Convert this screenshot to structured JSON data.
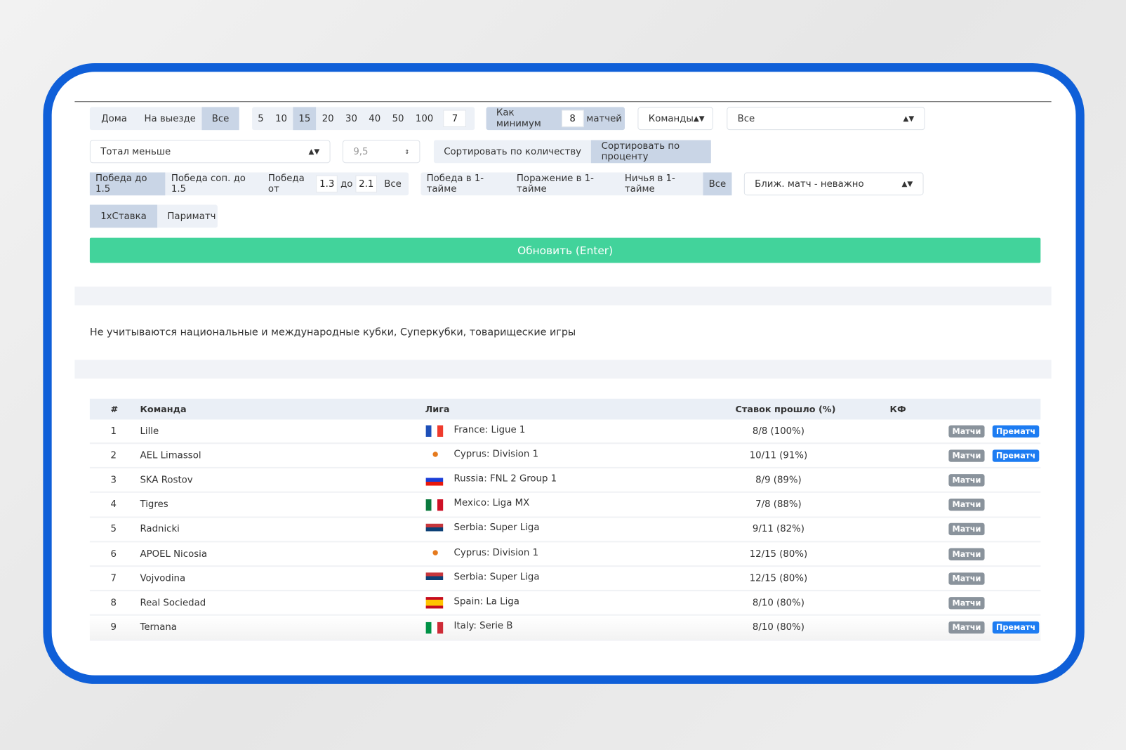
{
  "filters": {
    "venue": [
      "Дома",
      "На выезде",
      "Все"
    ],
    "venue_active": 2,
    "counts": [
      "5",
      "10",
      "15",
      "20",
      "30",
      "40",
      "50",
      "100"
    ],
    "counts_active": 2,
    "count_custom": "7",
    "min_prefix": "Как минимум",
    "min_value": "8",
    "min_suffix": "матчей",
    "teams_select": "Команды",
    "teams_value": "Все",
    "total_select": "Тотал меньше",
    "total_value": "9,5",
    "sort": [
      "Сортировать по количеству",
      "Сортировать по проценту"
    ],
    "sort_active": 1,
    "win": {
      "a": "Победа до 1.5",
      "b": "Победа соп. до 1.5",
      "c": "Победа от",
      "from": "1.3",
      "to_label": "до",
      "to": "2.1",
      "all": "Все"
    },
    "half": [
      "Победа в 1-тайме",
      "Поражение в 1-тайме",
      "Ничья в 1-тайме",
      "Все"
    ],
    "half_active": 3,
    "next_match": "Ближ. матч - неважно",
    "bookmakers": [
      "1хСтавка",
      "Париматч"
    ],
    "bookmaker_active": 0,
    "update": "Обновить (Enter)"
  },
  "note": "Не учитываются национальные и международные кубки, Суперкубки, товарищеские игры",
  "table": {
    "headers": [
      "#",
      "Команда",
      "Лига",
      "Ставок прошло (%)",
      "КФ"
    ],
    "matches_label": "Матчи",
    "prematch_label": "Прематч",
    "rows": [
      {
        "n": "1",
        "team": "Lille",
        "flag": "france",
        "league": "France: Ligue 1",
        "result": "8/8 (100%)",
        "prematch": true
      },
      {
        "n": "2",
        "team": "AEL Limassol",
        "flag": "cyprus",
        "league": "Cyprus: Division 1",
        "result": "10/11 (91%)",
        "prematch": true
      },
      {
        "n": "3",
        "team": "SKA Rostov",
        "flag": "russia",
        "league": "Russia: FNL 2 Group 1",
        "result": "8/9 (89%)",
        "prematch": false
      },
      {
        "n": "4",
        "team": "Tigres",
        "flag": "mexico",
        "league": "Mexico: Liga MX",
        "result": "7/8 (88%)",
        "prematch": false
      },
      {
        "n": "5",
        "team": "Radnicki",
        "flag": "serbia",
        "league": "Serbia: Super Liga",
        "result": "9/11 (82%)",
        "prematch": false
      },
      {
        "n": "6",
        "team": "APOEL Nicosia",
        "flag": "cyprus",
        "league": "Cyprus: Division 1",
        "result": "12/15 (80%)",
        "prematch": false
      },
      {
        "n": "7",
        "team": "Vojvodina",
        "flag": "serbia",
        "league": "Serbia: Super Liga",
        "result": "12/15 (80%)",
        "prematch": false
      },
      {
        "n": "8",
        "team": "Real Sociedad",
        "flag": "spain",
        "league": "Spain: La Liga",
        "result": "8/10 (80%)",
        "prematch": false
      },
      {
        "n": "9",
        "team": "Ternana",
        "flag": "italy",
        "league": "Italy: Serie B",
        "result": "8/10 (80%)",
        "prematch": true
      }
    ]
  },
  "colors": {
    "frame": "#0f5fd8",
    "update": "#42d39b",
    "active": "#c9d5e6",
    "prematch": "#1d7cf2",
    "matches": "#8a939c"
  }
}
